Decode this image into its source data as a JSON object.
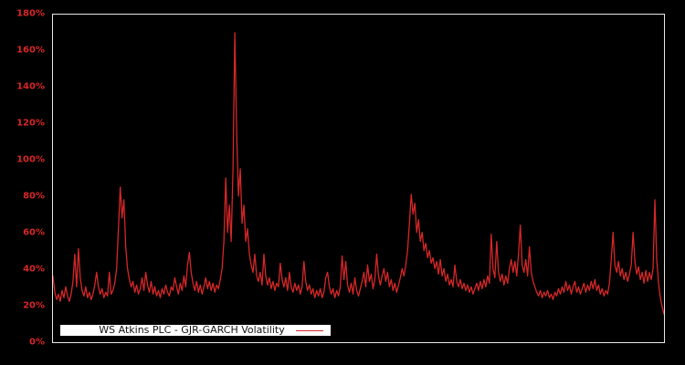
{
  "figure": {
    "background_color": "#000000",
    "plot_border_color": "#e8e8e8"
  },
  "accent": {
    "line_color": "#d62728",
    "tick_label_color": "#d62728",
    "legend_bg": "#ffffff",
    "legend_text_color": "#111111"
  },
  "legend": {
    "label": "WS Atkins PLC - GJR-GARCH Volatility",
    "line_sample_icon": "red-line-sample"
  },
  "y_axis": {
    "tick_labels": [
      "180%",
      "160%",
      "140%",
      "120%",
      "100%",
      "80%",
      "60%",
      "40%",
      "20%",
      "0%"
    ]
  },
  "chart_data": {
    "type": "line",
    "title": "",
    "xlabel": "",
    "ylabel": "",
    "unit": "%",
    "ylim": [
      0,
      180
    ],
    "y_ticks_percent": [
      0,
      20,
      40,
      60,
      80,
      100,
      120,
      140,
      160,
      180
    ],
    "x_tick_labels_visible": false,
    "grid": false,
    "legend_position": "bottom-left",
    "series": [
      {
        "name": "WS Atkins PLC - GJR-GARCH Volatility",
        "values": [
          36,
          27,
          23,
          26,
          22,
          28,
          24,
          30,
          25,
          22,
          26,
          33,
          48,
          30,
          51,
          35,
          28,
          25,
          30,
          24,
          27,
          23,
          26,
          31,
          38,
          30,
          26,
          29,
          24,
          27,
          25,
          38,
          26,
          28,
          32,
          40,
          62,
          85,
          68,
          78,
          52,
          40,
          34,
          30,
          33,
          27,
          31,
          26,
          29,
          35,
          28,
          38,
          31,
          27,
          33,
          26,
          30,
          25,
          28,
          24,
          29,
          26,
          31,
          27,
          25,
          30,
          28,
          35,
          30,
          26,
          32,
          28,
          36,
          30,
          42,
          49,
          38,
          32,
          28,
          33,
          27,
          31,
          26,
          30,
          35,
          29,
          33,
          28,
          32,
          27,
          31,
          29,
          34,
          40,
          55,
          90,
          60,
          75,
          55,
          95,
          170,
          115,
          80,
          95,
          65,
          75,
          55,
          62,
          48,
          42,
          38,
          48,
          36,
          33,
          38,
          31,
          48,
          36,
          31,
          35,
          29,
          33,
          28,
          32,
          30,
          43,
          34,
          30,
          35,
          28,
          38,
          30,
          27,
          32,
          28,
          31,
          26,
          30,
          44,
          33,
          28,
          31,
          26,
          29,
          24,
          28,
          25,
          29,
          24,
          27,
          35,
          38,
          30,
          26,
          29,
          24,
          28,
          25,
          30,
          47,
          34,
          44,
          31,
          27,
          32,
          26,
          35,
          28,
          25,
          29,
          33,
          38,
          30,
          42,
          33,
          37,
          29,
          34,
          48,
          36,
          31,
          36,
          40,
          33,
          38,
          30,
          34,
          28,
          32,
          27,
          31,
          35,
          40,
          36,
          42,
          50,
          65,
          81,
          70,
          76,
          60,
          67,
          55,
          60,
          50,
          54,
          46,
          50,
          43,
          46,
          40,
          44,
          37,
          45,
          36,
          40,
          33,
          37,
          31,
          34,
          30,
          42,
          33,
          30,
          34,
          29,
          32,
          28,
          31,
          27,
          30,
          26,
          29,
          32,
          28,
          33,
          29,
          34,
          30,
          36,
          32,
          59,
          40,
          35,
          55,
          38,
          33,
          37,
          31,
          36,
          32,
          40,
          45,
          38,
          44,
          36,
          48,
          64,
          42,
          38,
          45,
          36,
          52,
          38,
          33,
          30,
          27,
          25,
          28,
          24,
          27,
          25,
          28,
          24,
          26,
          23,
          27,
          25,
          29,
          26,
          30,
          27,
          33,
          28,
          31,
          26,
          30,
          33,
          27,
          30,
          26,
          29,
          32,
          27,
          31,
          28,
          33,
          29,
          34,
          28,
          31,
          26,
          29,
          25,
          28,
          26,
          32,
          45,
          60,
          42,
          38,
          44,
          36,
          40,
          34,
          38,
          33,
          37,
          42,
          60,
          44,
          37,
          41,
          34,
          38,
          32,
          39,
          33,
          38,
          34,
          40,
          78,
          45,
          32,
          24,
          19,
          15
        ]
      }
    ]
  }
}
